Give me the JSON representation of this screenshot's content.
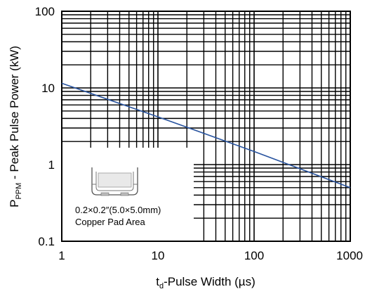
{
  "chart_data": {
    "type": "line",
    "x_scale": "log",
    "y_scale": "log",
    "xlim": [
      1,
      1000
    ],
    "ylim": [
      0.1,
      100
    ],
    "x_ticks": [
      "1",
      "10",
      "100",
      "1000"
    ],
    "y_ticks": [
      "100",
      "10",
      "1",
      "0.1"
    ],
    "grid": true,
    "xlabel": {
      "main": "t",
      "sub": "d",
      "rest": "-Pulse Width (µs)"
    },
    "ylabel": {
      "main": "P",
      "sub": "PPM",
      "rest": " - Peak Pulse Power (kW)"
    },
    "series": [
      {
        "color": "#2a55a0",
        "x": [
          1,
          10,
          100,
          1000
        ],
        "y": [
          11.5,
          4.2,
          1.48,
          0.5
        ]
      }
    ],
    "inset": {
      "line1": "0.2×0.2″(5.0×5.0mm)",
      "line2": "Copper Pad Area",
      "icon": "smd-package-icon"
    }
  }
}
